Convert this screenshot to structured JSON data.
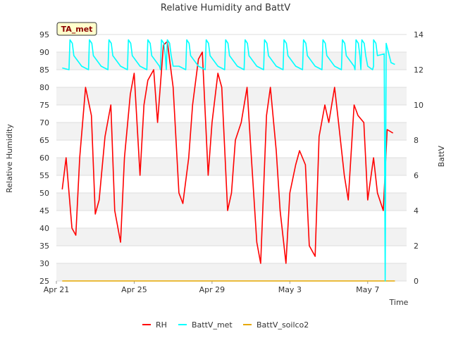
{
  "chart_data": {
    "type": "line",
    "title": "Relative Humidity and BattV",
    "xlabel": "Time",
    "ylabel_left": "Relative Humidity",
    "ylabel_right": "BattV",
    "station_label": "TA_met",
    "x_ticks": [
      "Apr 21",
      "Apr 25",
      "Apr 29",
      "May 3",
      "May 7"
    ],
    "x_tick_days": [
      0,
      4,
      8,
      12,
      16
    ],
    "x_range_days": [
      0,
      18
    ],
    "y_left_range": [
      25,
      95
    ],
    "y_left_ticks": [
      25,
      30,
      35,
      40,
      45,
      50,
      55,
      60,
      65,
      70,
      75,
      80,
      85,
      90,
      95
    ],
    "y_right_range": [
      0,
      14
    ],
    "y_right_ticks": [
      0,
      2,
      4,
      6,
      8,
      10,
      12,
      14
    ],
    "grid": true,
    "legend_position": "bottom",
    "series": [
      {
        "name": "RH",
        "axis": "left",
        "color": "#ff0000",
        "x_days": [
          0.3,
          0.5,
          0.8,
          1.0,
          1.2,
          1.5,
          1.8,
          2.0,
          2.2,
          2.5,
          2.8,
          3.0,
          3.3,
          3.5,
          3.8,
          4.0,
          4.3,
          4.5,
          4.7,
          5.0,
          5.2,
          5.5,
          5.7,
          6.0,
          6.3,
          6.5,
          6.8,
          7.0,
          7.3,
          7.5,
          7.8,
          8.0,
          8.3,
          8.5,
          8.8,
          9.0,
          9.2,
          9.5,
          9.8,
          10.0,
          10.3,
          10.5,
          10.8,
          11.0,
          11.3,
          11.5,
          11.8,
          12.0,
          12.3,
          12.5,
          12.8,
          13.0,
          13.3,
          13.5,
          13.8,
          14.0,
          14.3,
          14.5,
          14.8,
          15.0,
          15.3,
          15.5,
          15.8,
          16.0,
          16.3,
          16.5,
          16.8,
          17.0,
          17.3
        ],
        "values": [
          51,
          60,
          40,
          38,
          60,
          80,
          72,
          44,
          48,
          66,
          75,
          45,
          36,
          60,
          78,
          84,
          55,
          75,
          82,
          85,
          70,
          92,
          93,
          80,
          50,
          47,
          60,
          75,
          88,
          90,
          55,
          70,
          84,
          80,
          45,
          50,
          65,
          70,
          80,
          62,
          36,
          30,
          72,
          80,
          62,
          45,
          30,
          50,
          58,
          62,
          58,
          35,
          32,
          66,
          75,
          70,
          80,
          70,
          55,
          48,
          75,
          72,
          70,
          48,
          60,
          50,
          45,
          68,
          67
        ],
        "y_values_note": ""
      },
      {
        "name": "BattV_met",
        "axis": "right",
        "color": "#00ffff",
        "baseline": 12.1,
        "peak": 13.7,
        "peaks_days": [
          0.7,
          1.7,
          2.7,
          3.7,
          4.7,
          5.4,
          5.7,
          6.7,
          7.7,
          8.7,
          9.7,
          10.7,
          11.7,
          12.7,
          13.7,
          14.7,
          15.4,
          15.7,
          16.3,
          16.9
        ],
        "dip_day": 16.9,
        "dip_value": 0
      },
      {
        "name": "BattV_soilco2",
        "axis": "right",
        "color": "#e6a800",
        "constant_value": 0
      }
    ]
  }
}
